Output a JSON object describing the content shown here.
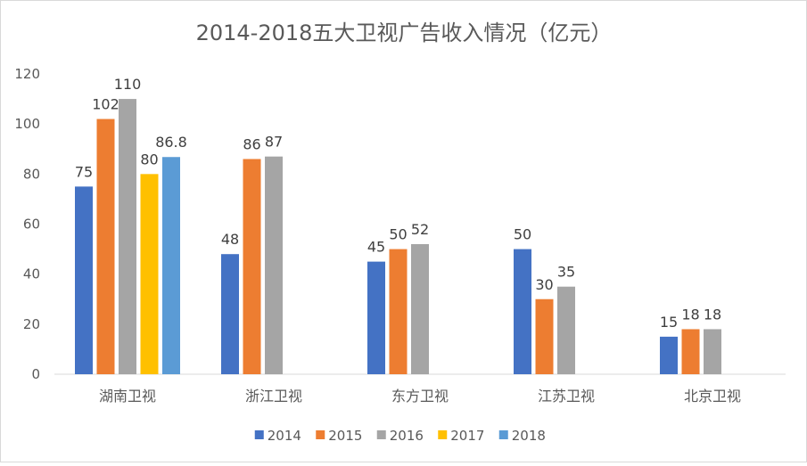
{
  "chart_data": {
    "type": "bar",
    "title": "2014-2018五大卫视广告收入情况（亿元）",
    "xlabel": "",
    "ylabel": "",
    "ylim": [
      0,
      120
    ],
    "yticks": [
      0,
      20,
      40,
      60,
      80,
      100,
      120
    ],
    "grid": false,
    "legend": "bottom",
    "categories": [
      "湖南卫视",
      "浙江卫视",
      "东方卫视",
      "江苏卫视",
      "北京卫视"
    ],
    "series": [
      {
        "name": "2014",
        "color": "#4472c4",
        "values": [
          75,
          48,
          45,
          50,
          15
        ]
      },
      {
        "name": "2015",
        "color": "#ed7d31",
        "values": [
          102,
          86,
          50,
          30,
          18
        ]
      },
      {
        "name": "2016",
        "color": "#a5a5a5",
        "values": [
          110,
          87,
          52,
          35,
          18
        ]
      },
      {
        "name": "2017",
        "color": "#ffc000",
        "values": [
          80,
          null,
          null,
          null,
          null
        ]
      },
      {
        "name": "2018",
        "color": "#5b9bd5",
        "values": [
          86.8,
          null,
          null,
          null,
          null
        ]
      }
    ]
  }
}
